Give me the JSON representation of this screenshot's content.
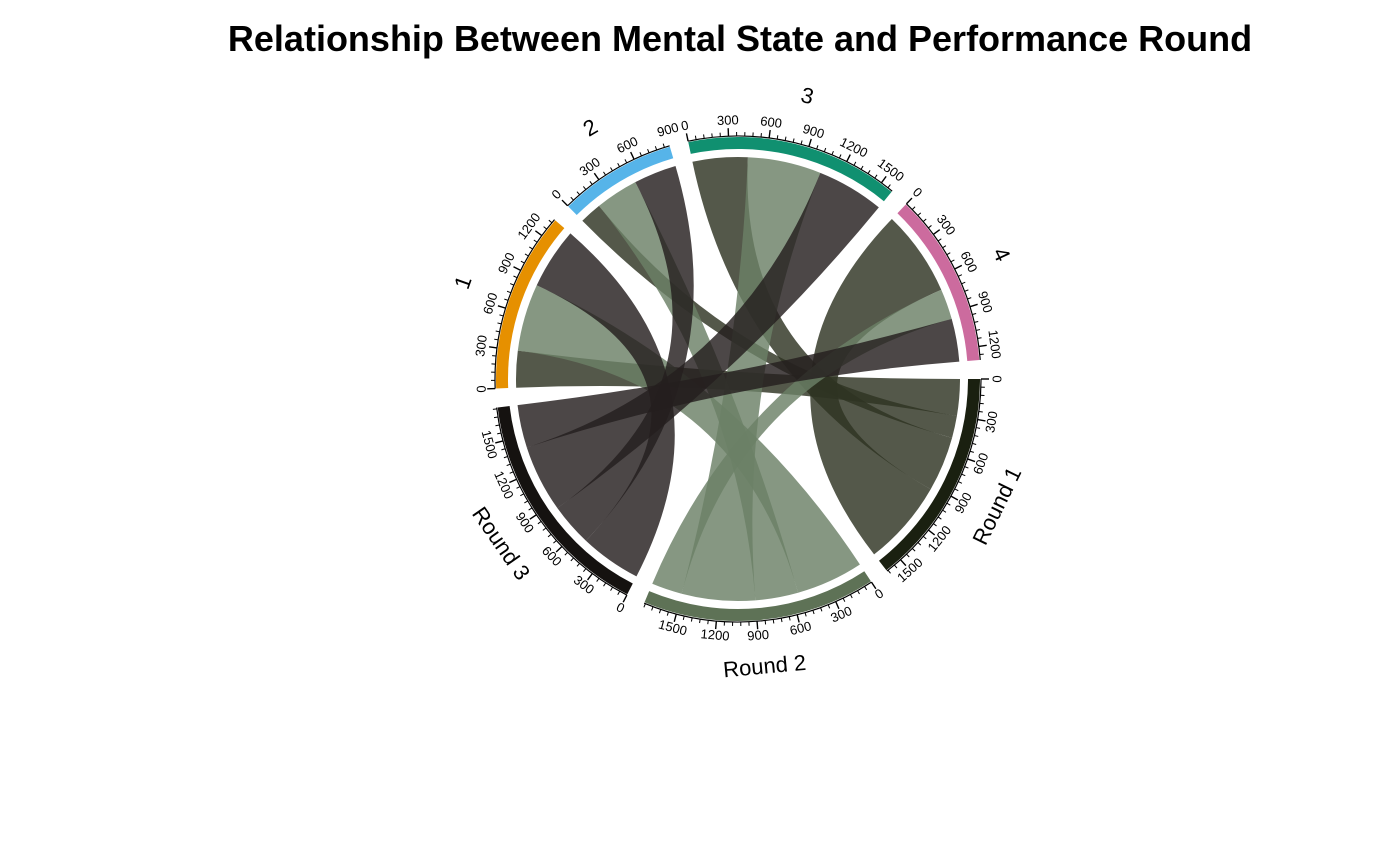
{
  "chart_data": {
    "type": "chord",
    "title": "Relationship Between Mental State and Performance Round",
    "sectors": [
      {
        "name": "Round 1",
        "color": "#1a2010"
      },
      {
        "name": "Round 2",
        "color": "#5e7256"
      },
      {
        "name": "Round 3",
        "color": "#151210"
      },
      {
        "name": "1",
        "color": "#e69000"
      },
      {
        "name": "2",
        "color": "#56b4e9"
      },
      {
        "name": "3",
        "color": "#109070"
      },
      {
        "name": "4",
        "color": "#cc6b9e"
      }
    ],
    "ticks": {
      "Round 1": [
        "0",
        "300",
        "600",
        "900",
        "1200",
        "1500"
      ],
      "Round 2": [
        "0",
        "300",
        "600",
        "900",
        "1200",
        "1500"
      ],
      "Round 3": [
        "0",
        "300",
        "600",
        "900",
        "1200",
        "1500"
      ],
      "1": [
        "0",
        "300",
        "600",
        "900",
        "1200"
      ],
      "2": [
        "0",
        "300",
        "600",
        "900"
      ],
      "3": [
        "0",
        "300",
        "600",
        "900",
        "1200",
        "1500"
      ],
      "4": [
        "0",
        "300",
        "600",
        "900",
        "1200"
      ]
    },
    "links": [
      {
        "from": "Round 1",
        "to": "1",
        "value": 300
      },
      {
        "from": "Round 1",
        "to": "2",
        "value": 180
      },
      {
        "from": "Round 1",
        "to": "3",
        "value": 450
      },
      {
        "from": "Round 1",
        "to": "4",
        "value": 700
      },
      {
        "from": "Round 2",
        "to": "1",
        "value": 550
      },
      {
        "from": "Round 2",
        "to": "2",
        "value": 350
      },
      {
        "from": "Round 2",
        "to": "3",
        "value": 600
      },
      {
        "from": "Round 2",
        "to": "4",
        "value": 250
      },
      {
        "from": "Round 3",
        "to": "1",
        "value": 500
      },
      {
        "from": "Round 3",
        "to": "2",
        "value": 350
      },
      {
        "from": "Round 3",
        "to": "3",
        "value": 550
      },
      {
        "from": "Round 3",
        "to": "4",
        "value": 350
      }
    ],
    "link_colors": {
      "Round 1": "#2e3322",
      "Round 2": "#6b8066",
      "Round 3": "#241e1e"
    }
  }
}
